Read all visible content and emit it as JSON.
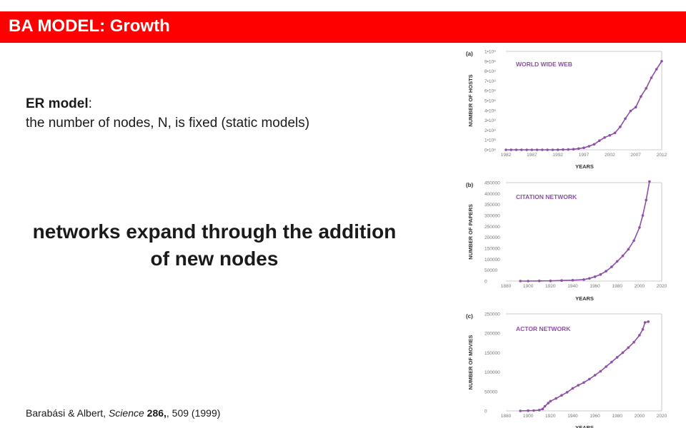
{
  "header": {
    "title": "BA MODEL: Growth"
  },
  "er": {
    "label": "ER model",
    "colon": ":",
    "description": "the number of nodes, N, is fixed (static models)"
  },
  "headline": {
    "line1": "networks expand through the addition",
    "line2": "of new nodes"
  },
  "citation": {
    "authors": "Barabási & Albert, ",
    "journal": "Science",
    "volume": "286",
    "rest": ", 509 (1999)"
  },
  "colors": {
    "header": "#ff0000",
    "series": "#8e4fa8",
    "panel_text": "#8e4fa8"
  },
  "chart_data": [
    {
      "type": "scatter",
      "panel_label": "(a)",
      "title": "WORLD WIDE WEB",
      "xlabel": "YEARS",
      "ylabel": "NUMBER OF HOSTS",
      "xlim": [
        1982,
        2012
      ],
      "ylim": [
        0,
        1000000000
      ],
      "xticks": [
        "1982",
        "1987",
        "1992",
        "1997",
        "2002",
        "2007",
        "2012"
      ],
      "yticks": [
        "0•10⁸",
        "1•10⁸",
        "2•10⁸",
        "3•10⁸",
        "4•10⁸",
        "5•10⁸",
        "6•10⁸",
        "7•10⁸",
        "8•10⁸",
        "9•10⁸",
        "1•10⁹"
      ],
      "series": [
        {
          "x": [
            1982,
            1983,
            1984,
            1985,
            1986,
            1987,
            1988,
            1989,
            1990,
            1991,
            1992,
            1993,
            1994,
            1995,
            1996,
            1997,
            1998,
            1999,
            2000,
            2001,
            2002,
            2003,
            2004,
            2005,
            2006,
            2007,
            2008,
            2009,
            2010,
            2011,
            2012
          ],
          "y": [
            0,
            0,
            0,
            0,
            0,
            0,
            0,
            0,
            0,
            0,
            1000000,
            2000000,
            3000000,
            6000000,
            12000000,
            20000000,
            36000000,
            56000000,
            93000000,
            125000000,
            147000000,
            172000000,
            233000000,
            317000000,
            394000000,
            433000000,
            541000000,
            625000000,
            732000000,
            818000000,
            900000000
          ]
        }
      ]
    },
    {
      "type": "scatter",
      "panel_label": "(b)",
      "title": "CITATION NETWORK",
      "xlabel": "YEARS",
      "ylabel": "NUMBER OF PAPERS",
      "xlim": [
        1880,
        2020
      ],
      "ylim": [
        0,
        450000
      ],
      "xticks": [
        "1880",
        "1900",
        "1920",
        "1940",
        "1960",
        "1980",
        "2000",
        "2020"
      ],
      "yticks": [
        "0",
        "50000",
        "100000",
        "150000",
        "200000",
        "250000",
        "300000",
        "350000",
        "400000",
        "450000"
      ],
      "series": [
        {
          "x": [
            1893,
            1900,
            1910,
            1920,
            1930,
            1940,
            1950,
            1955,
            1960,
            1965,
            1970,
            1975,
            1980,
            1985,
            1990,
            1995,
            2000,
            2003,
            2006,
            2009
          ],
          "y": [
            0,
            0,
            500,
            1000,
            2500,
            4000,
            7000,
            12000,
            20000,
            30000,
            45000,
            65000,
            90000,
            115000,
            145000,
            185000,
            245000,
            300000,
            370000,
            455000
          ]
        }
      ]
    },
    {
      "type": "scatter",
      "panel_label": "(c)",
      "title": "ACTOR NETWORK",
      "xlabel": "YEARS",
      "ylabel": "NUMBER OF MOVIES",
      "xlim": [
        1880,
        2020
      ],
      "ylim": [
        0,
        250000
      ],
      "xticks": [
        "1880",
        "1900",
        "1920",
        "1940",
        "1960",
        "1980",
        "2000",
        "2020"
      ],
      "yticks": [
        "0",
        "50000",
        "100000",
        "150000",
        "200000",
        "250000"
      ],
      "series": [
        {
          "x": [
            1893,
            1900,
            1905,
            1910,
            1913,
            1915,
            1918,
            1920,
            1925,
            1930,
            1935,
            1940,
            1945,
            1950,
            1955,
            1960,
            1965,
            1970,
            1975,
            1980,
            1985,
            1990,
            1995,
            2000,
            2003,
            2005,
            2008
          ],
          "y": [
            0,
            500,
            1000,
            2000,
            5000,
            12000,
            20000,
            25000,
            32000,
            40000,
            48000,
            58000,
            66000,
            73000,
            82000,
            92000,
            102000,
            114000,
            126000,
            138000,
            150000,
            163000,
            177000,
            195000,
            210000,
            228000,
            230000
          ]
        }
      ]
    }
  ]
}
